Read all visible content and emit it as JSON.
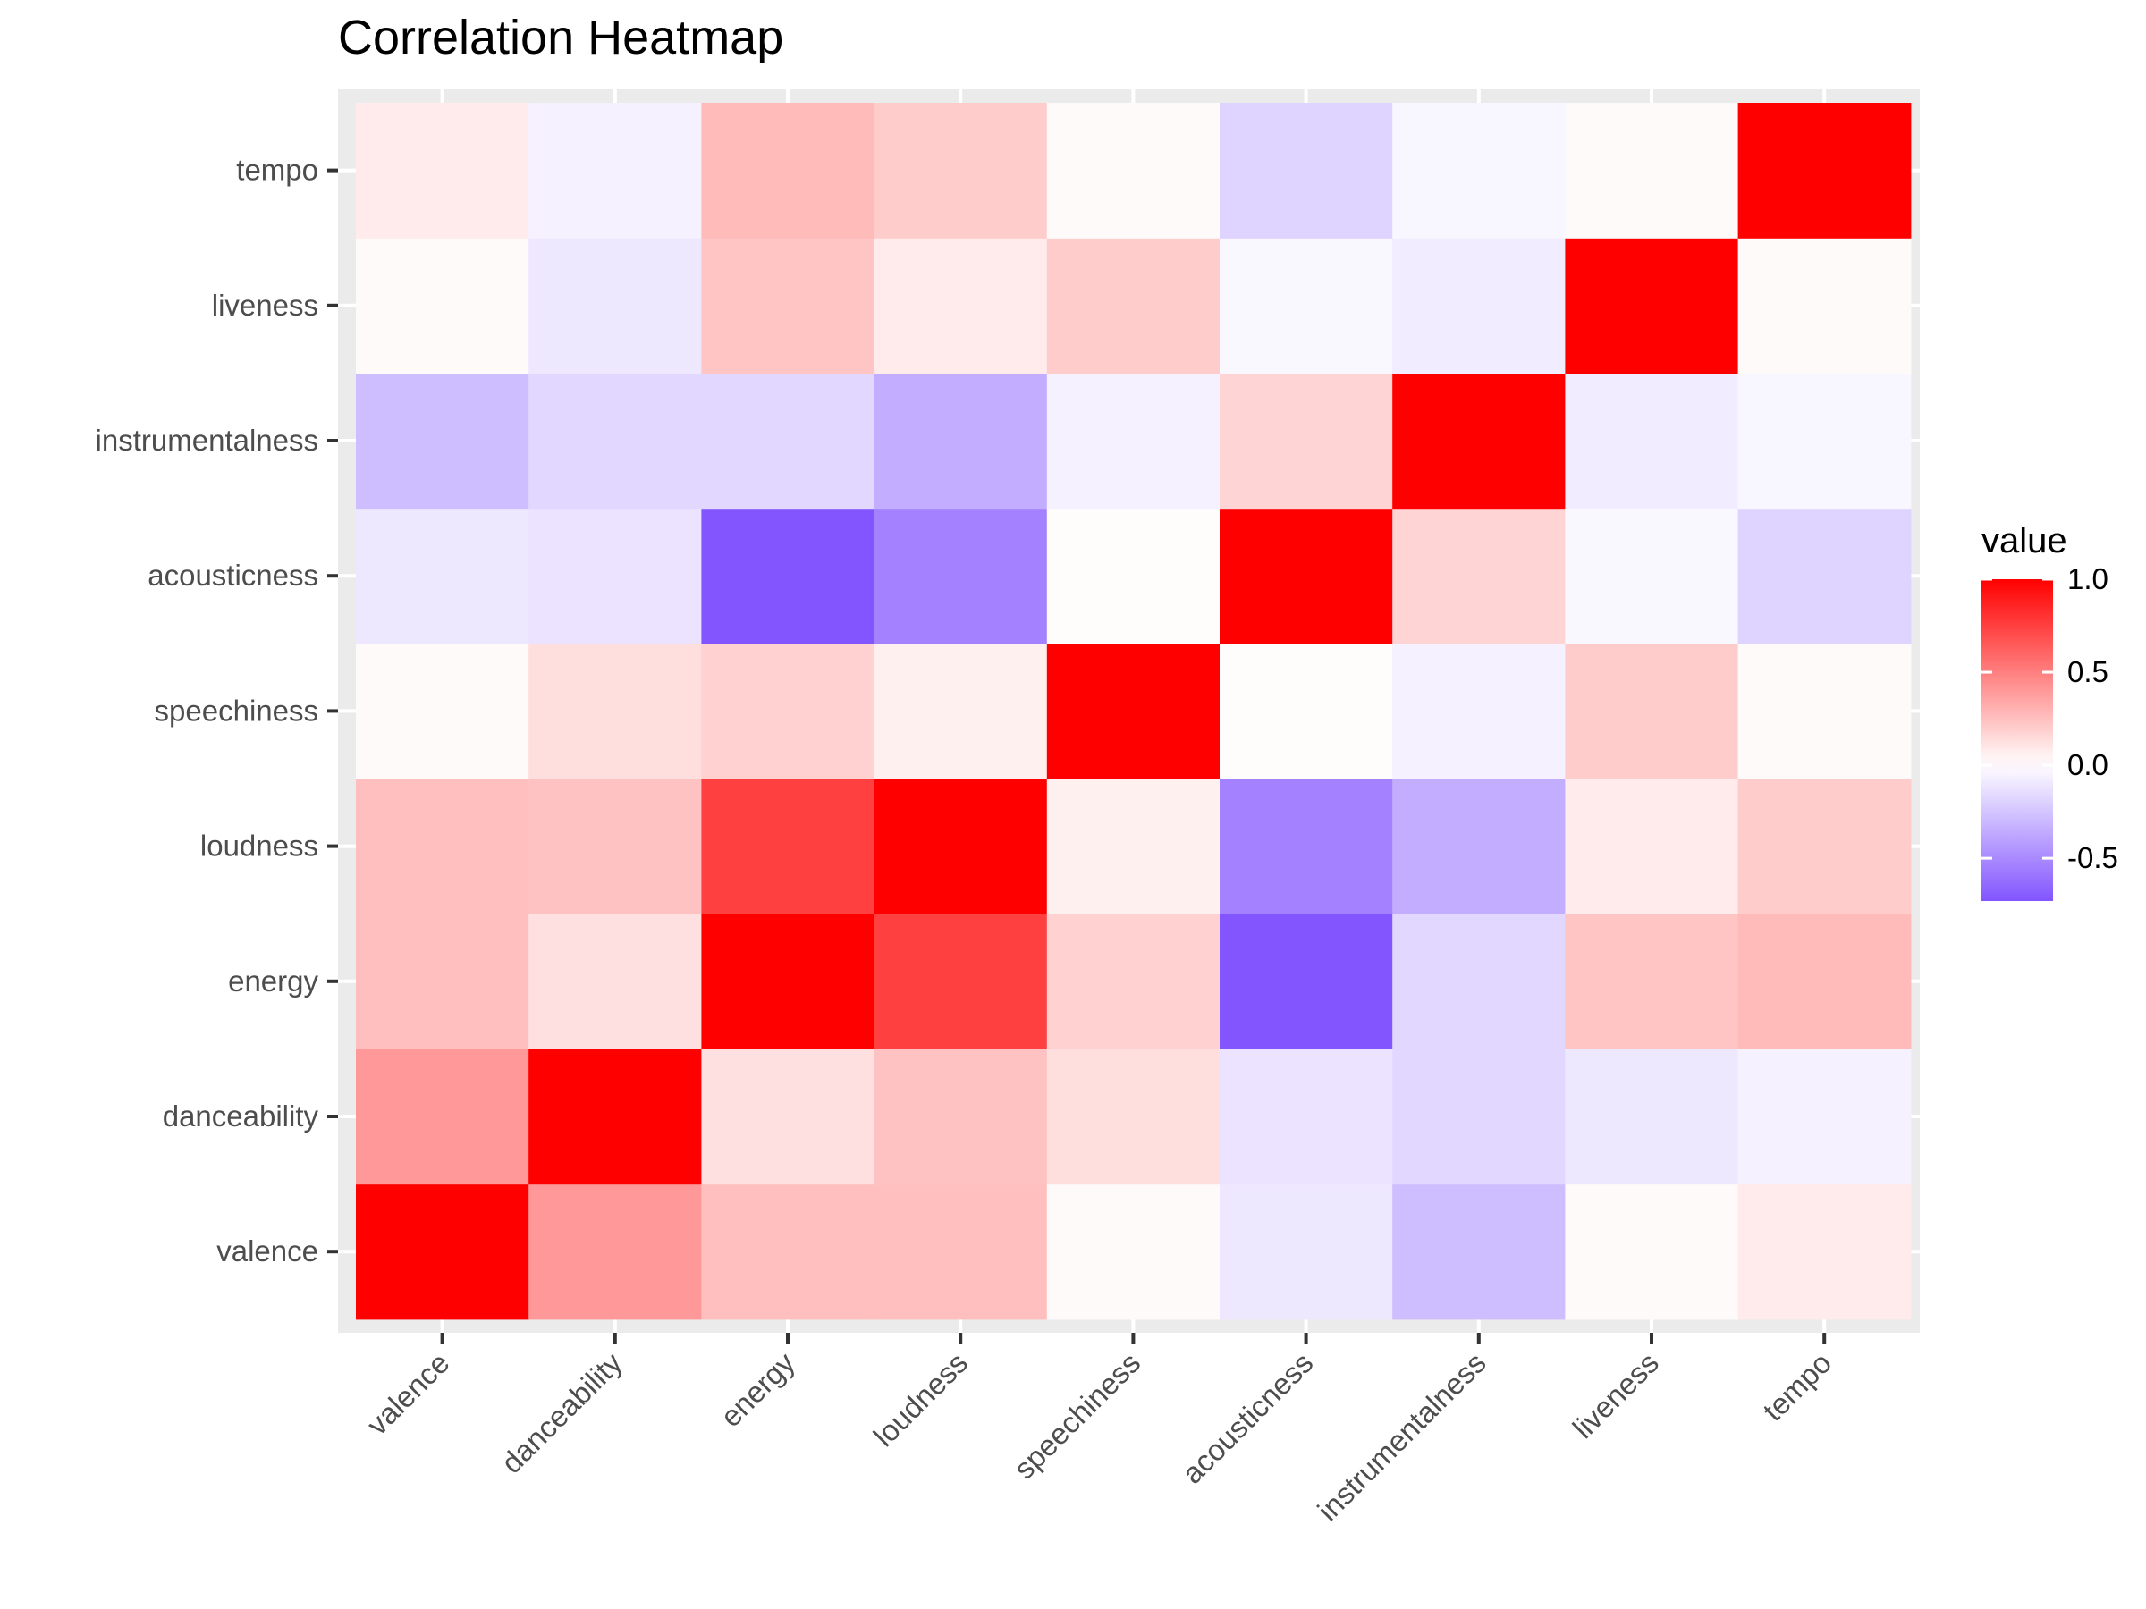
{
  "chart_data": {
    "type": "heatmap",
    "title": "Correlation Heatmap",
    "xlabel": "",
    "ylabel": "",
    "variables": [
      "valence",
      "danceability",
      "energy",
      "loudness",
      "speechiness",
      "acousticness",
      "instrumentalness",
      "liveness",
      "tempo"
    ],
    "matrix": [
      [
        1.0,
        0.4,
        0.25,
        0.25,
        0.02,
        -0.1,
        -0.28,
        0.02,
        0.08
      ],
      [
        0.4,
        1.0,
        0.12,
        0.24,
        0.13,
        -0.12,
        -0.17,
        -0.1,
        -0.06
      ],
      [
        0.25,
        0.12,
        1.0,
        0.75,
        0.18,
        -0.73,
        -0.17,
        0.23,
        0.27
      ],
      [
        0.25,
        0.24,
        0.75,
        1.0,
        0.06,
        -0.54,
        -0.35,
        0.08,
        0.2
      ],
      [
        0.02,
        0.13,
        0.18,
        0.06,
        1.0,
        0.01,
        -0.06,
        0.2,
        0.02
      ],
      [
        -0.1,
        -0.12,
        -0.73,
        -0.54,
        0.01,
        1.0,
        0.17,
        -0.03,
        -0.19
      ],
      [
        -0.28,
        -0.17,
        -0.17,
        -0.35,
        -0.06,
        0.17,
        1.0,
        -0.08,
        -0.04
      ],
      [
        0.02,
        -0.1,
        0.23,
        0.08,
        0.2,
        -0.03,
        -0.08,
        1.0,
        0.02
      ],
      [
        0.08,
        -0.06,
        0.27,
        0.2,
        0.02,
        -0.19,
        -0.04,
        0.02,
        1.0
      ]
    ],
    "color_scale": {
      "low": "#7f50ff",
      "mid": "#ffffff",
      "high": "#ff0000",
      "midpoint": 0
    },
    "legend": {
      "title": "value",
      "position": "right",
      "range": [
        -0.73,
        1.0
      ],
      "ticks": [
        1.0,
        0.5,
        0.0,
        -0.5
      ],
      "tick_labels": [
        "1.0",
        "0.5",
        "0.0",
        "-0.5"
      ]
    },
    "grid": true,
    "panel_background": "#ebebeb"
  }
}
